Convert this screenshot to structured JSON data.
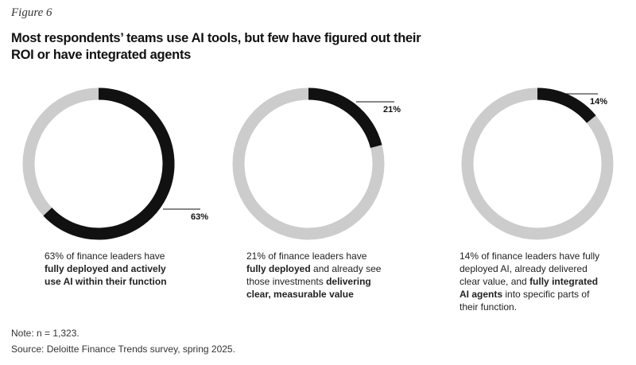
{
  "figure_label": "Figure 6",
  "title": "Most respondents’ teams use AI tools, but few have figured out their ROI or have integrated agents",
  "chart_data": [
    {
      "type": "donut",
      "values": [
        63
      ],
      "value_labels": [
        "63%"
      ],
      "color": "#111111",
      "track_color": "#cccccc",
      "caption": [
        {
          "text": "63% of finance leaders have ",
          "bold": false
        },
        {
          "text": "fully deployed and actively use AI within their function",
          "bold": true
        }
      ]
    },
    {
      "type": "donut",
      "values": [
        21
      ],
      "value_labels": [
        "21%"
      ],
      "color": "#111111",
      "track_color": "#cccccc",
      "caption": [
        {
          "text": "21% of finance leaders have ",
          "bold": false
        },
        {
          "text": "fully deployed",
          "bold": true
        },
        {
          "text": " and already see those investments ",
          "bold": false
        },
        {
          "text": "delivering clear, measurable value",
          "bold": true
        }
      ]
    },
    {
      "type": "donut",
      "values": [
        14
      ],
      "value_labels": [
        "14%"
      ],
      "color": "#111111",
      "track_color": "#cccccc",
      "caption": [
        {
          "text": "14% of finance leaders have fully deployed AI, already delivered clear value, and ",
          "bold": false
        },
        {
          "text": "fully integrated AI agents",
          "bold": true
        },
        {
          "text": " into specific parts of their function.",
          "bold": false
        }
      ]
    }
  ],
  "note": "Note: n = 1,323.",
  "source": "Source: Deloitte Finance Trends survey, spring 2025."
}
